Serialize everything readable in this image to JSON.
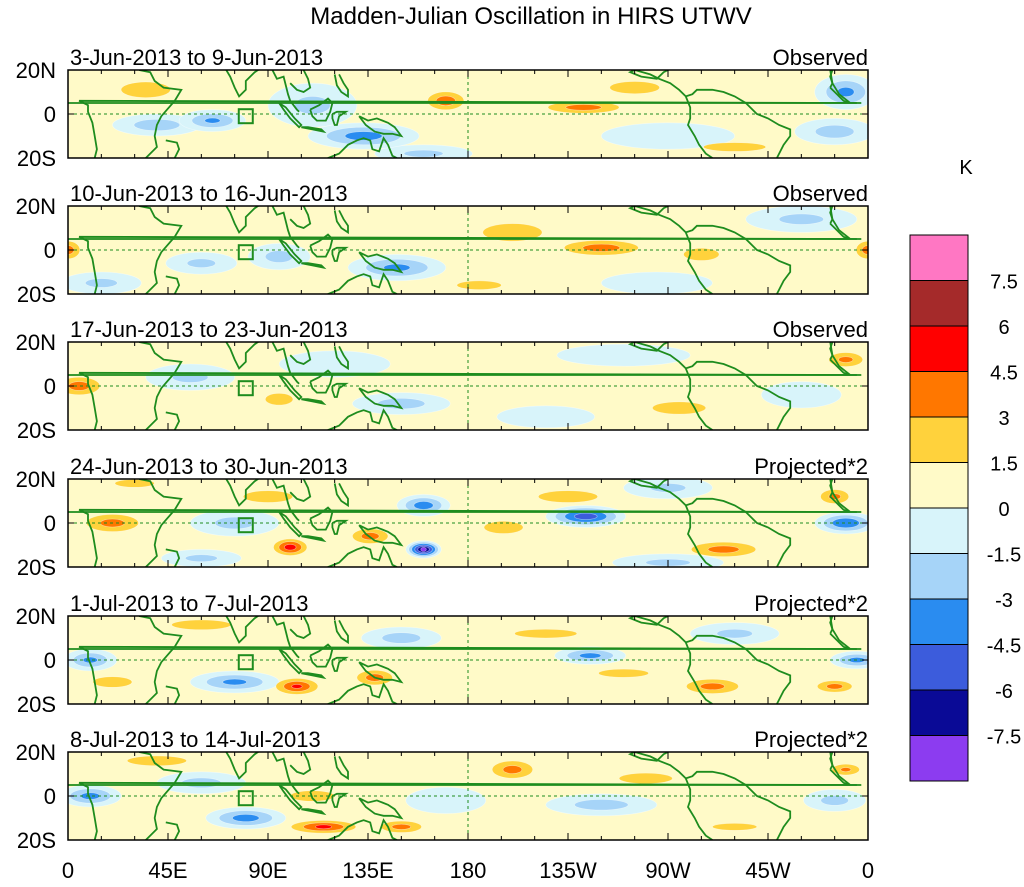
{
  "chart_data": {
    "type": "heatmap",
    "title": "Madden-Julian Oscillation in HIRS UTWV",
    "units_label": "K",
    "y_ticks": [
      "20N",
      "0",
      "20S"
    ],
    "x_ticks": [
      "0",
      "45E",
      "90E",
      "135E",
      "180",
      "135W",
      "90W",
      "45W",
      "0"
    ],
    "lon_range": [
      0,
      360
    ],
    "lat_range": [
      -20,
      20
    ],
    "colorbar": {
      "levels": [
        "7.5",
        "6",
        "4.5",
        "3",
        "1.5",
        "0",
        "-1.5",
        "-3",
        "-4.5",
        "-6",
        "-7.5"
      ],
      "colors": [
        "#ff77c3",
        "#a52a2a",
        "#ff0000",
        "#ff7700",
        "#ffd23c",
        "#fffac8",
        "#d8f4fa",
        "#a6d4f8",
        "#2a8cf0",
        "#3c5cdc",
        "#0a0a96",
        "#8c3cf0"
      ]
    },
    "panels": [
      {
        "date_range": "3-Jun-2013 to 9-Jun-2013",
        "type_label": "Observed",
        "anomalies": [
          {
            "lon": 170,
            "lat": 6,
            "wlon": 12,
            "wlat": 6,
            "v": 3.8
          },
          {
            "lon": 232,
            "lat": 3,
            "wlon": 24,
            "wlat": 4,
            "v": 3.6
          },
          {
            "lon": 35,
            "lat": 11,
            "wlon": 25,
            "wlat": 8,
            "v": 1.8
          },
          {
            "lon": 255,
            "lat": 12,
            "wlon": 28,
            "wlat": 7,
            "v": 1.6
          },
          {
            "lon": 300,
            "lat": -15,
            "wlon": 35,
            "wlat": 5,
            "v": 1.6
          },
          {
            "lon": 195,
            "lat": -14,
            "wlon": 35,
            "wlat": 5,
            "v": 1.4
          },
          {
            "lon": 60,
            "lat": -8,
            "wlon": 22,
            "wlat": 6,
            "v": 1.4
          },
          {
            "lon": 65,
            "lat": -3,
            "wlon": 15,
            "wlat": 5,
            "v": -3.0
          },
          {
            "lon": 133,
            "lat": -10,
            "wlon": 25,
            "wlat": 6,
            "v": -3.6
          },
          {
            "lon": 40,
            "lat": -5,
            "wlon": 20,
            "wlat": 5,
            "v": -2.2
          },
          {
            "lon": 350,
            "lat": 10,
            "wlon": 14,
            "wlat": 8,
            "v": -3.2
          },
          {
            "lon": 345,
            "lat": -8,
            "wlon": 18,
            "wlat": 6,
            "v": -2.0
          },
          {
            "lon": 160,
            "lat": -18,
            "wlon": 22,
            "wlat": 4,
            "v": -1.6
          },
          {
            "lon": 110,
            "lat": 4,
            "wlon": 20,
            "wlat": 10,
            "v": -1.6
          },
          {
            "lon": 270,
            "lat": -10,
            "wlon": 30,
            "wlat": 6,
            "v": -1.4
          }
        ]
      },
      {
        "date_range": "10-Jun-2013 to 16-Jun-2013",
        "type_label": "Observed",
        "anomalies": [
          {
            "lon": 0,
            "lat": 0,
            "wlon": 8,
            "wlat": 6,
            "v": 3.6
          },
          {
            "lon": 360,
            "lat": 0,
            "wlon": 8,
            "wlat": 6,
            "v": 3.6
          },
          {
            "lon": 240,
            "lat": 1,
            "wlon": 25,
            "wlat": 5,
            "v": 3.6
          },
          {
            "lon": 200,
            "lat": 8,
            "wlon": 30,
            "wlat": 9,
            "v": 1.8
          },
          {
            "lon": 285,
            "lat": -2,
            "wlon": 20,
            "wlat": 7,
            "v": 1.6
          },
          {
            "lon": 70,
            "lat": 15,
            "wlon": 15,
            "wlat": 5,
            "v": 1.4
          },
          {
            "lon": 185,
            "lat": -16,
            "wlon": 25,
            "wlat": 5,
            "v": 1.6
          },
          {
            "lon": 330,
            "lat": -15,
            "wlon": 30,
            "wlat": 5,
            "v": 1.4
          },
          {
            "lon": 148,
            "lat": -8,
            "wlon": 22,
            "wlat": 6,
            "v": -3.2
          },
          {
            "lon": 95,
            "lat": -3,
            "wlon": 14,
            "wlat": 6,
            "v": -1.8
          },
          {
            "lon": 60,
            "lat": -6,
            "wlon": 16,
            "wlat": 5,
            "v": -1.6
          },
          {
            "lon": 15,
            "lat": -15,
            "wlon": 18,
            "wlat": 5,
            "v": -1.6
          },
          {
            "lon": 265,
            "lat": -15,
            "wlon": 25,
            "wlat": 5,
            "v": -1.4
          },
          {
            "lon": 330,
            "lat": 14,
            "wlon": 25,
            "wlat": 6,
            "v": -1.6
          }
        ]
      },
      {
        "date_range": "17-Jun-2013 to 23-Jun-2013",
        "type_label": "Observed",
        "anomalies": [
          {
            "lon": 5,
            "lat": 0,
            "wlon": 14,
            "wlat": 6,
            "v": 3.6
          },
          {
            "lon": 350,
            "lat": 12,
            "wlon": 12,
            "wlat": 5,
            "v": 3.2
          },
          {
            "lon": 95,
            "lat": -6,
            "wlon": 14,
            "wlat": 6,
            "v": 1.8
          },
          {
            "lon": 200,
            "lat": 4,
            "wlon": 25,
            "wlat": 8,
            "v": 1.4
          },
          {
            "lon": 275,
            "lat": -10,
            "wlon": 30,
            "wlat": 7,
            "v": 1.6
          },
          {
            "lon": 45,
            "lat": -12,
            "wlon": 20,
            "wlat": 6,
            "v": 1.4
          },
          {
            "lon": 150,
            "lat": -8,
            "wlon": 22,
            "wlat": 5,
            "v": -2.0
          },
          {
            "lon": 55,
            "lat": 4,
            "wlon": 20,
            "wlat": 6,
            "v": -1.6
          },
          {
            "lon": 120,
            "lat": 10,
            "wlon": 25,
            "wlat": 6,
            "v": -1.4
          },
          {
            "lon": 250,
            "lat": 14,
            "wlon": 30,
            "wlat": 5,
            "v": -1.4
          },
          {
            "lon": 330,
            "lat": -4,
            "wlon": 18,
            "wlat": 6,
            "v": -1.4
          },
          {
            "lon": 215,
            "lat": -14,
            "wlon": 22,
            "wlat": 5,
            "v": -1.3
          }
        ]
      },
      {
        "date_range": "24-Jun-2013 to 30-Jun-2013",
        "type_label": "Projected*2",
        "anomalies": [
          {
            "lon": 100,
            "lat": -11,
            "wlon": 10,
            "wlat": 5,
            "v": 5.2
          },
          {
            "lon": 136,
            "lat": -6,
            "wlon": 12,
            "wlat": 5,
            "v": 3.6
          },
          {
            "lon": 20,
            "lat": 0,
            "wlon": 18,
            "wlat": 6,
            "v": 3.4
          },
          {
            "lon": 295,
            "lat": -12,
            "wlon": 22,
            "wlat": 5,
            "v": 3.5
          },
          {
            "lon": 225,
            "lat": 12,
            "wlon": 30,
            "wlat": 6,
            "v": 1.8
          },
          {
            "lon": 90,
            "lat": 12,
            "wlon": 25,
            "wlat": 6,
            "v": 1.8
          },
          {
            "lon": 345,
            "lat": 12,
            "wlon": 10,
            "wlat": 5,
            "v": 3.2
          },
          {
            "lon": 30,
            "lat": 18,
            "wlon": 20,
            "wlat": 4,
            "v": 1.8
          },
          {
            "lon": 196,
            "lat": -2,
            "wlon": 22,
            "wlat": 7,
            "v": 1.6
          },
          {
            "lon": 160,
            "lat": -12,
            "wlon": 8,
            "wlat": 4,
            "v": -8.0
          },
          {
            "lon": 233,
            "lat": 3,
            "wlon": 18,
            "wlat": 5,
            "v": -5.4
          },
          {
            "lon": 160,
            "lat": 8,
            "wlon": 12,
            "wlat": 5,
            "v": -3.8
          },
          {
            "lon": 350,
            "lat": 0,
            "wlon": 14,
            "wlat": 5,
            "v": -4.4
          },
          {
            "lon": 75,
            "lat": 0,
            "wlon": 20,
            "wlat": 6,
            "v": -1.8
          },
          {
            "lon": 60,
            "lat": -16,
            "wlon": 18,
            "wlat": 4,
            "v": -1.6
          },
          {
            "lon": 270,
            "lat": -18,
            "wlon": 25,
            "wlat": 4,
            "v": -1.6
          },
          {
            "lon": 270,
            "lat": 16,
            "wlon": 20,
            "wlat": 5,
            "v": -1.6
          }
        ]
      },
      {
        "date_range": "1-Jul-2013 to 7-Jul-2013",
        "type_label": "Projected*2",
        "anomalies": [
          {
            "lon": 103,
            "lat": -12,
            "wlon": 13,
            "wlat": 5,
            "v": 4.6
          },
          {
            "lon": 138,
            "lat": -8,
            "wlon": 12,
            "wlat": 5,
            "v": 3.6
          },
          {
            "lon": 290,
            "lat": -12,
            "wlon": 18,
            "wlat": 5,
            "v": 3.4
          },
          {
            "lon": 345,
            "lat": -12,
            "wlon": 12,
            "wlat": 4,
            "v": 3.4
          },
          {
            "lon": 60,
            "lat": 16,
            "wlon": 30,
            "wlat": 5,
            "v": 1.8
          },
          {
            "lon": 215,
            "lat": 12,
            "wlon": 35,
            "wlat": 5,
            "v": 1.6
          },
          {
            "lon": 20,
            "lat": -10,
            "wlon": 22,
            "wlat": 6,
            "v": 1.6
          },
          {
            "lon": 250,
            "lat": -6,
            "wlon": 30,
            "wlat": 5,
            "v": 1.5
          },
          {
            "lon": 235,
            "lat": 2,
            "wlon": 16,
            "wlat": 4,
            "v": -3.4
          },
          {
            "lon": 355,
            "lat": 0,
            "wlon": 12,
            "wlat": 4,
            "v": -3.4
          },
          {
            "lon": 10,
            "lat": 0,
            "wlon": 12,
            "wlat": 5,
            "v": -3.2
          },
          {
            "lon": 75,
            "lat": -10,
            "wlon": 20,
            "wlat": 5,
            "v": -3.2
          },
          {
            "lon": 150,
            "lat": 10,
            "wlon": 18,
            "wlat": 5,
            "v": -2.0
          },
          {
            "lon": 300,
            "lat": 12,
            "wlon": 20,
            "wlat": 5,
            "v": -1.6
          }
        ]
      },
      {
        "date_range": "8-Jul-2013 to 14-Jul-2013",
        "type_label": "Projected*2",
        "anomalies": [
          {
            "lon": 115,
            "lat": -14,
            "wlon": 20,
            "wlat": 4,
            "v": 4.6
          },
          {
            "lon": 150,
            "lat": -14,
            "wlon": 14,
            "wlat": 4,
            "v": 3.4
          },
          {
            "lon": 200,
            "lat": 12,
            "wlon": 14,
            "wlat": 6,
            "v": 3.4
          },
          {
            "lon": 350,
            "lat": 12,
            "wlon": 10,
            "wlat": 4,
            "v": 3.0
          },
          {
            "lon": 40,
            "lat": 16,
            "wlon": 30,
            "wlat": 5,
            "v": 1.8
          },
          {
            "lon": 260,
            "lat": 8,
            "wlon": 30,
            "wlat": 6,
            "v": 1.6
          },
          {
            "lon": 110,
            "lat": 0,
            "wlon": 25,
            "wlat": 6,
            "v": 1.6
          },
          {
            "lon": 300,
            "lat": -14,
            "wlon": 25,
            "wlat": 4,
            "v": 1.6
          },
          {
            "lon": 10,
            "lat": 0,
            "wlon": 14,
            "wlat": 5,
            "v": -3.4
          },
          {
            "lon": 80,
            "lat": -10,
            "wlon": 18,
            "wlat": 5,
            "v": -3.6
          },
          {
            "lon": 60,
            "lat": 6,
            "wlon": 20,
            "wlat": 5,
            "v": -1.8
          },
          {
            "lon": 240,
            "lat": -4,
            "wlon": 25,
            "wlat": 5,
            "v": -2.0
          },
          {
            "lon": 345,
            "lat": -2,
            "wlon": 14,
            "wlat": 5,
            "v": -1.8
          },
          {
            "lon": 170,
            "lat": -2,
            "wlon": 18,
            "wlat": 6,
            "v": -1.4
          }
        ]
      }
    ]
  }
}
